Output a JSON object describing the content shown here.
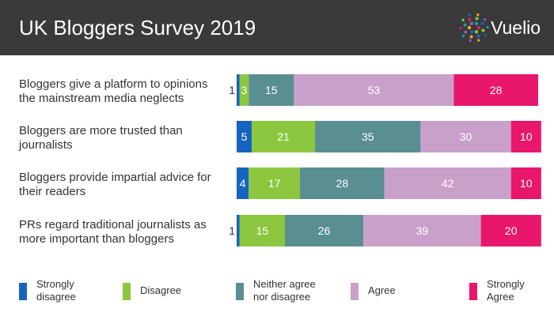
{
  "header": {
    "title": "UK Bloggers Survey 2019",
    "logo_text": "Vuelio",
    "logo_icon": "dot-burst-logo-icon",
    "bg_color": "#3a3a3a"
  },
  "chart_data": {
    "type": "bar",
    "orientation": "horizontal",
    "stacked": true,
    "categories": [
      [
        "Bloggers give a platform to opinions",
        "the mainstream media neglects"
      ],
      [
        "Bloggers are more trusted than",
        "journalists"
      ],
      [
        "Bloggers provide impartial advice for",
        "their readers"
      ],
      [
        "PRs regard traditional journalists as",
        "more important than bloggers"
      ]
    ],
    "series": [
      {
        "name": "Strongly disagree",
        "legend_lines": [
          "Strongly",
          "disagree"
        ],
        "color": "#1565c0",
        "values": [
          1,
          5,
          4,
          1
        ]
      },
      {
        "name": "Disagree",
        "legend_lines": [
          "Disagree"
        ],
        "color": "#8dc63f",
        "values": [
          3,
          21,
          17,
          15
        ]
      },
      {
        "name": "Neither agree nor disagree",
        "legend_lines": [
          "Neither agree",
          "nor disagree"
        ],
        "color": "#5a8f91",
        "values": [
          15,
          35,
          28,
          26
        ]
      },
      {
        "name": "Agree",
        "legend_lines": [
          "Agree"
        ],
        "color": "#c9a0c9",
        "values": [
          53,
          30,
          42,
          39
        ]
      },
      {
        "name": "Strongly Agree",
        "legend_lines": [
          "Strongly",
          "Agree"
        ],
        "color": "#e8176b",
        "values": [
          28,
          10,
          10,
          20
        ]
      }
    ],
    "data_labels": [
      [
        "1",
        "3",
        "15",
        "53",
        "28"
      ],
      [
        "5",
        "21",
        "35",
        "30",
        "10"
      ],
      [
        "4",
        "17",
        "28",
        "42",
        "10"
      ],
      [
        "1",
        "15",
        "26",
        "39",
        "20"
      ]
    ],
    "xlim": [
      0,
      100
    ],
    "grid": false,
    "legend_position": "bottom"
  }
}
